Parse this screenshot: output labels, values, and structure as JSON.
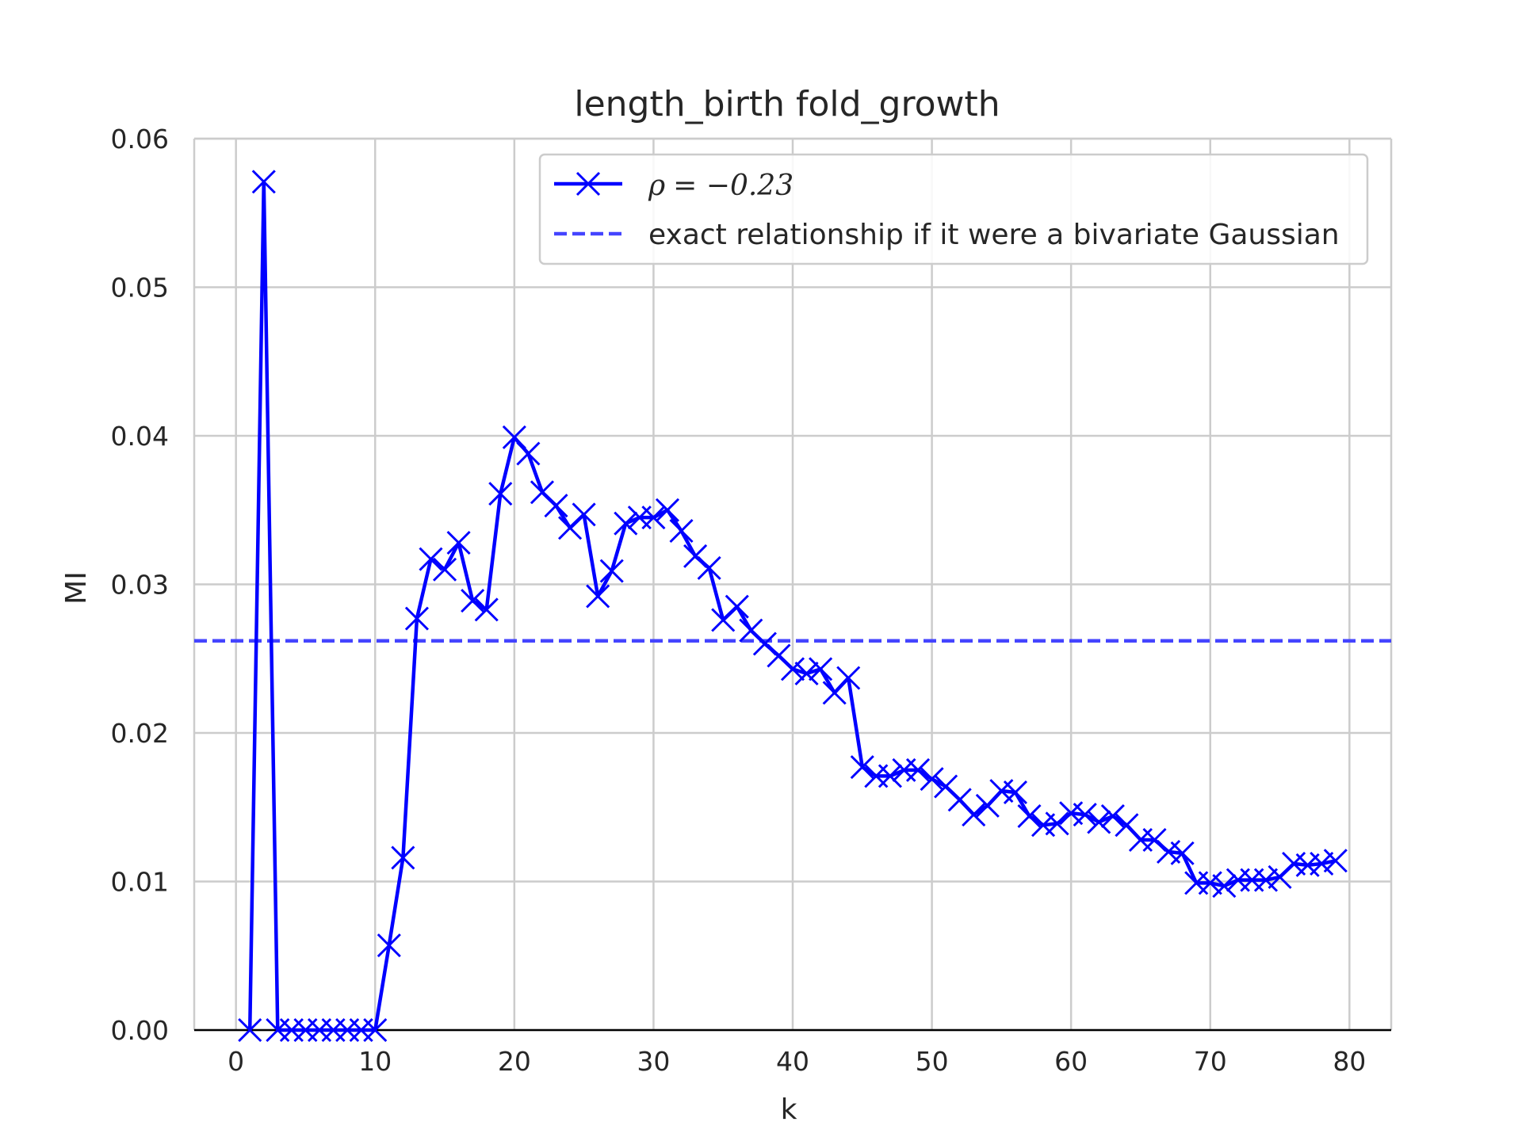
{
  "chart_data": {
    "type": "line",
    "title": "length_birth fold_growth",
    "xlabel": "k",
    "ylabel": "MI",
    "xlim": [
      -3,
      83
    ],
    "ylim": [
      0,
      0.06
    ],
    "xticks": [
      0,
      10,
      20,
      30,
      40,
      50,
      60,
      70,
      80
    ],
    "yticks": [
      0.0,
      0.01,
      0.02,
      0.03,
      0.04,
      0.05,
      0.06
    ],
    "ytick_labels": [
      "0.00",
      "0.01",
      "0.02",
      "0.03",
      "0.04",
      "0.05",
      "0.06"
    ],
    "grid": true,
    "legend_position": "top-right",
    "series": [
      {
        "name": "ρ = −0.23",
        "color": "#0000ff",
        "marker": "x",
        "x": [
          1,
          2,
          3,
          4,
          5,
          6,
          7,
          8,
          9,
          10,
          11,
          12,
          13,
          14,
          15,
          16,
          17,
          18,
          19,
          20,
          21,
          22,
          23,
          24,
          25,
          26,
          27,
          28,
          29,
          30,
          31,
          32,
          33,
          34,
          35,
          36,
          37,
          38,
          39,
          40,
          41,
          42,
          43,
          44,
          45,
          46,
          47,
          48,
          49,
          50,
          51,
          52,
          53,
          54,
          55,
          56,
          57,
          58,
          59,
          60,
          61,
          62,
          63,
          64,
          65,
          66,
          67,
          68,
          69,
          70,
          71,
          72,
          73,
          74,
          75,
          76,
          77,
          78,
          79
        ],
        "y": [
          0.0,
          0.0571,
          0.0,
          0.0,
          0.0,
          0.0,
          0.0,
          0.0,
          0.0,
          0.0,
          0.0057,
          0.0116,
          0.0277,
          0.0317,
          0.031,
          0.0328,
          0.0289,
          0.0283,
          0.0361,
          0.0399,
          0.0388,
          0.0362,
          0.0353,
          0.0338,
          0.0347,
          0.0292,
          0.0309,
          0.0341,
          0.0345,
          0.0345,
          0.035,
          0.0336,
          0.0319,
          0.0311,
          0.0276,
          0.0285,
          0.0269,
          0.026,
          0.0252,
          0.0243,
          0.024,
          0.0243,
          0.0227,
          0.0237,
          0.0177,
          0.0171,
          0.0171,
          0.0175,
          0.0175,
          0.0169,
          0.0164,
          0.0155,
          0.0145,
          0.0151,
          0.0161,
          0.016,
          0.0144,
          0.0138,
          0.0139,
          0.0146,
          0.0145,
          0.014,
          0.0144,
          0.0138,
          0.0128,
          0.0128,
          0.012,
          0.0119,
          0.0099,
          0.0099,
          0.0097,
          0.0101,
          0.0101,
          0.0101,
          0.0103,
          0.0112,
          0.0111,
          0.0112,
          0.0114
        ]
      },
      {
        "name": "exact relationship if it were a bivariate Gaussian",
        "color": "#4444ff",
        "style": "dashed",
        "y_constant": 0.0262
      }
    ],
    "legend": {
      "entry1_symbol": "ρ",
      "entry1_rest": "= −0.23",
      "entry2": "exact relationship if it were a bivariate Gaussian"
    }
  }
}
